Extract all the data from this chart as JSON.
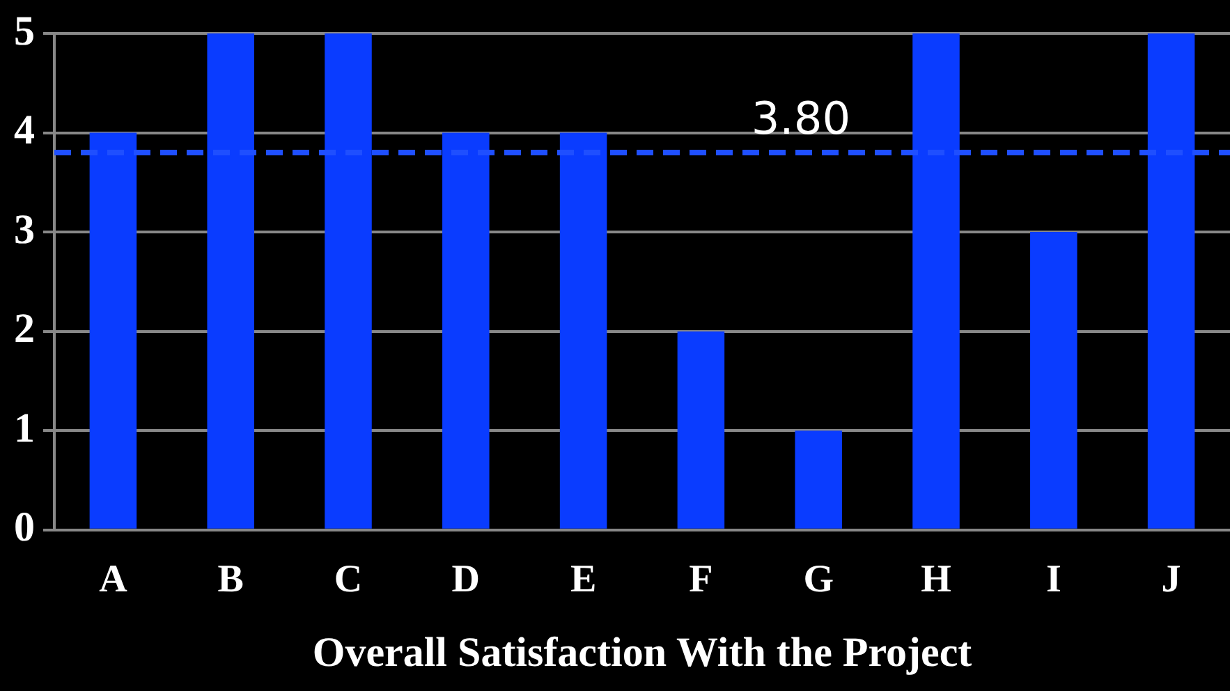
{
  "chart_data": {
    "type": "bar",
    "xlabel": "Overall Satisfaction With the Project",
    "categories": [
      "A",
      "B",
      "C",
      "D",
      "E",
      "F",
      "G",
      "H",
      "I",
      "J"
    ],
    "values": [
      4,
      5,
      5,
      4,
      4,
      2,
      1,
      5,
      3,
      5
    ],
    "color": "#0a3cff",
    "ylim": [
      0,
      5
    ],
    "yticks": [
      0,
      1,
      2,
      3,
      4,
      5
    ],
    "grid": "y",
    "ref_lines": [
      {
        "axis": "y",
        "value": 3.8,
        "label": "3.80",
        "color": "#1f4fff",
        "line_style": "dashed"
      }
    ]
  }
}
